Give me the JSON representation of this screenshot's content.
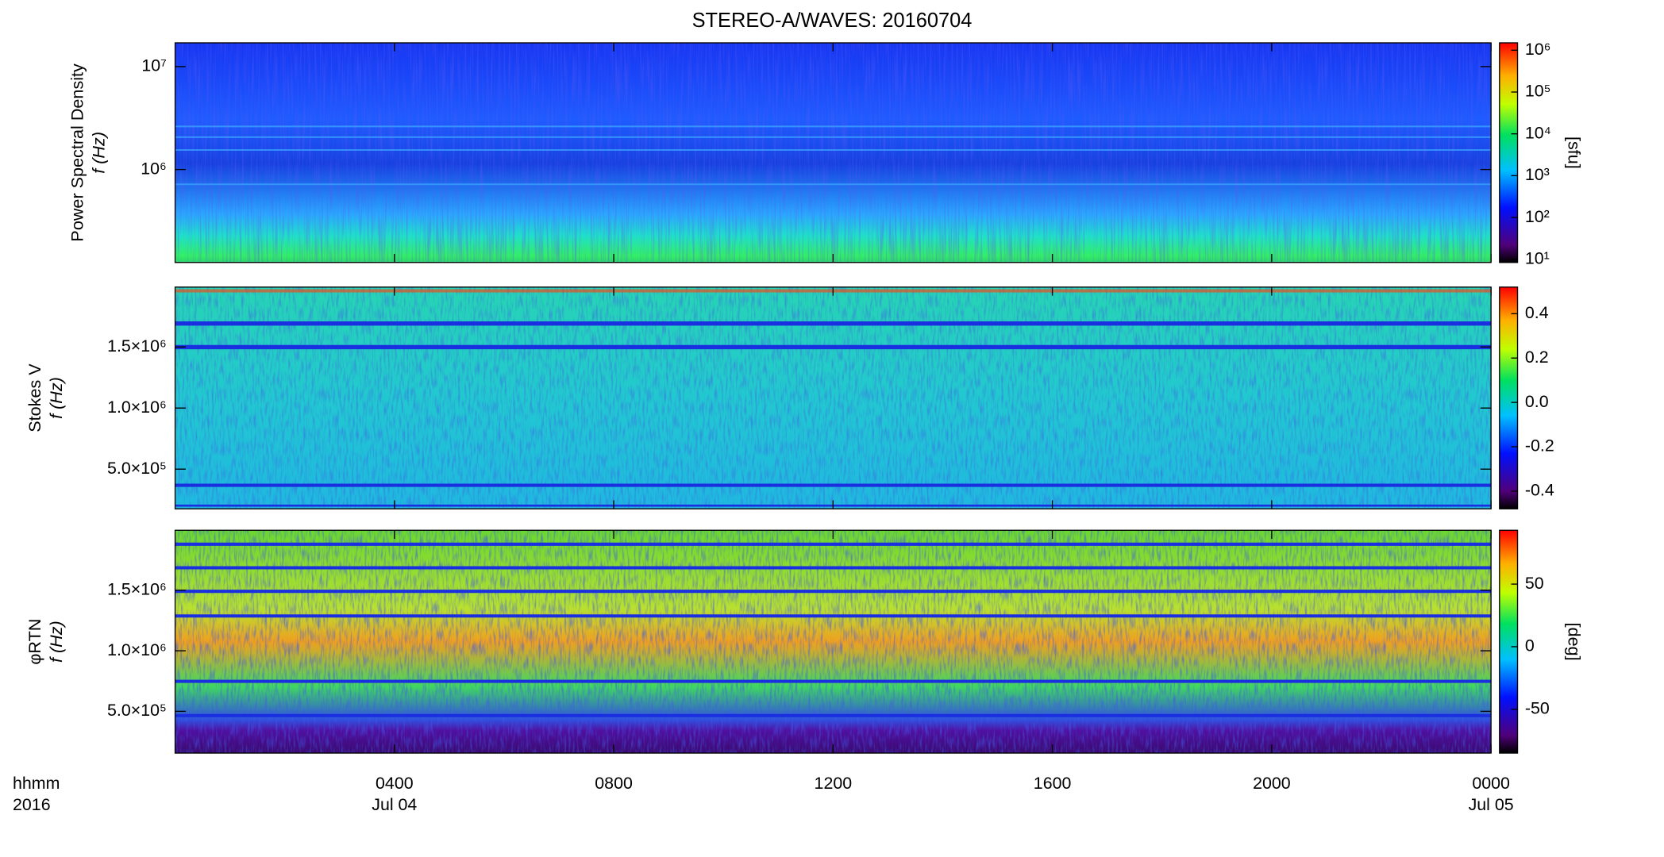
{
  "title": "STEREO-A/WAVES: 20160704",
  "time_unit_label": "hhmm",
  "year_label": "2016",
  "xlim": [
    0,
    24
  ],
  "xticks": [
    {
      "value": 4,
      "label": "0400"
    },
    {
      "value": 8,
      "label": "0800"
    },
    {
      "value": 12,
      "label": "1200"
    },
    {
      "value": 16,
      "label": "1600"
    },
    {
      "value": 20,
      "label": "2000"
    },
    {
      "value": 24,
      "label": "0000"
    }
  ],
  "date_labels": [
    {
      "value": 4,
      "label": "Jul 04"
    },
    {
      "value": 24,
      "label": "Jul 05"
    }
  ],
  "chart_data": [
    {
      "type": "spectrogram",
      "ylabel": "Power Spectral Density",
      "yunit_label": "f (Hz)",
      "ylog": true,
      "ylim": [
        125000,
        17000000
      ],
      "yticks": [
        {
          "value": 1000000,
          "label": "10⁶"
        },
        {
          "value": 10000000,
          "label": "10⁷"
        }
      ],
      "zlog": true,
      "zlim": [
        8.4,
        1500000
      ],
      "zticks": [
        {
          "value": 10,
          "label": "10¹"
        },
        {
          "value": 100,
          "label": "10²"
        },
        {
          "value": 1000,
          "label": "10³"
        },
        {
          "value": 10000,
          "label": "10⁴"
        },
        {
          "value": 100000,
          "label": "10⁵"
        },
        {
          "value": 1000000,
          "label": "10⁶"
        }
      ],
      "zlabel": "[sfu]"
    },
    {
      "type": "spectrogram",
      "ylabel": "Stokes V",
      "yunit_label": "f (Hz)",
      "ylog": false,
      "ylim": [
        175000,
        1990000
      ],
      "yticks": [
        {
          "value": 500000,
          "label": "5.0×10⁵"
        },
        {
          "value": 1000000,
          "label": "1.0×10⁶"
        },
        {
          "value": 1500000,
          "label": "1.5×10⁶"
        }
      ],
      "zlog": false,
      "zlim": [
        -0.48,
        0.52
      ],
      "zticks": [
        {
          "value": -0.4,
          "label": "-0.4"
        },
        {
          "value": -0.2,
          "label": "-0.2"
        },
        {
          "value": 0,
          "label": "0.0"
        },
        0.2,
        0.4
      ]
    },
    {
      "type": "spectrogram",
      "ylabel": "φRTN",
      "yunit_label": "f (Hz)",
      "ylog": false,
      "ylim": [
        155000,
        1995000
      ],
      "yticks": [
        {
          "value": 500000,
          "label": "5.0×10⁵"
        },
        {
          "value": 1000000,
          "label": "1.0×10⁶"
        },
        {
          "value": 1500000,
          "label": "1.5×10⁶"
        }
      ],
      "zlog": false,
      "zlim": [
        -85,
        93
      ],
      "zticks": [
        -50,
        0,
        50
      ],
      "zlabel": "[deg]"
    }
  ]
}
